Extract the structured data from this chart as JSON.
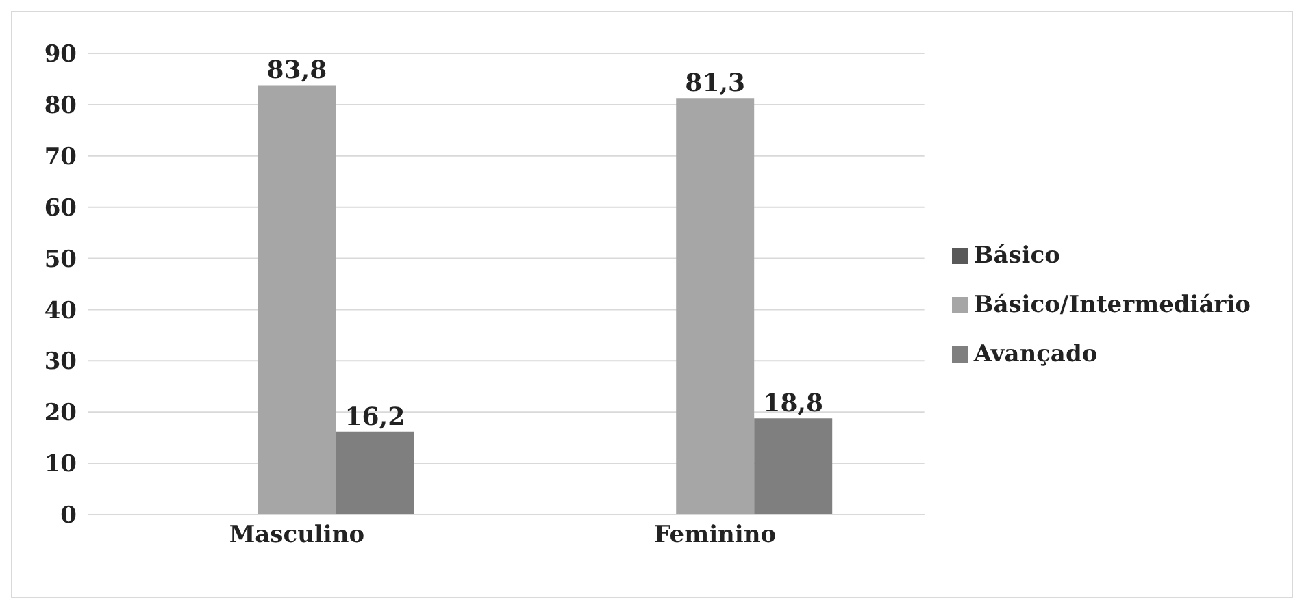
{
  "chart_data": {
    "type": "bar",
    "categories": [
      "Masculino",
      "Feminino"
    ],
    "series": [
      {
        "name": "Básico",
        "color": "#595959",
        "values": [
          null,
          null
        ]
      },
      {
        "name": "Básico/Intermediário",
        "color": "#a6a6a6",
        "values": [
          83.8,
          81.3
        ],
        "value_labels": [
          "83,8",
          "81,3"
        ]
      },
      {
        "name": "Avançado",
        "color": "#7f7f7f",
        "values": [
          16.2,
          18.8
        ],
        "value_labels": [
          "16,2",
          "18,8"
        ]
      }
    ],
    "ylim": [
      0,
      90
    ],
    "yticks": [
      0,
      10,
      20,
      30,
      40,
      50,
      60,
      70,
      80,
      90
    ],
    "grid": "y",
    "legend": "right"
  }
}
